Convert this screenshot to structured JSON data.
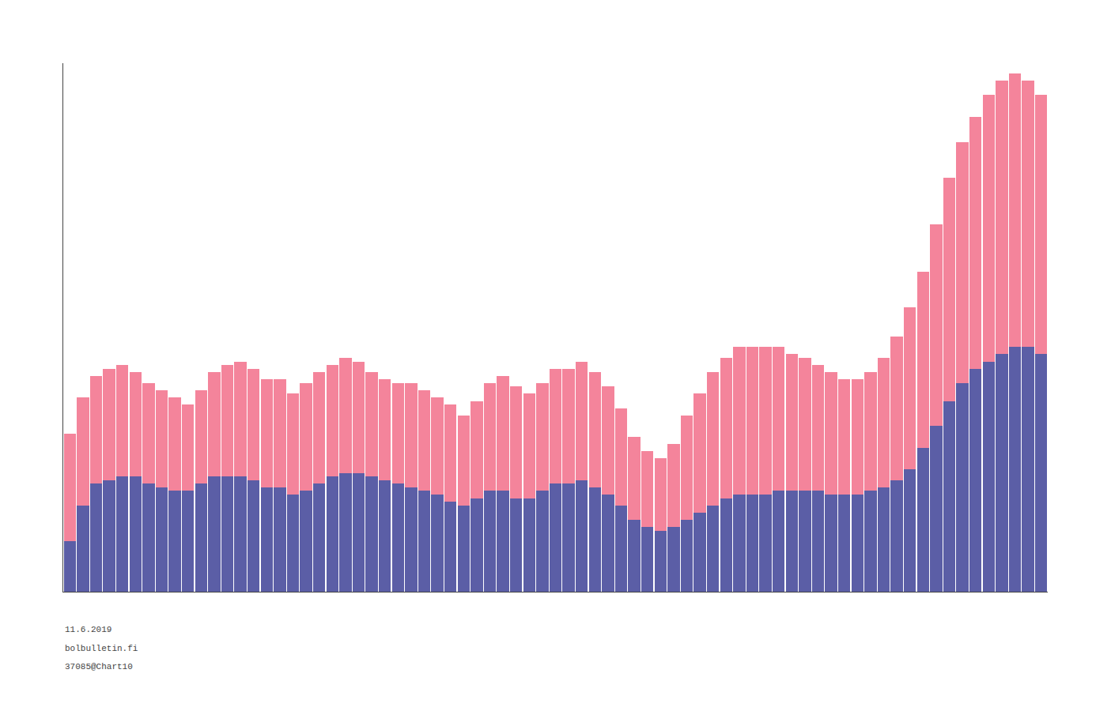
{
  "chart_data": {
    "type": "bar",
    "stacked": true,
    "grid": false,
    "tick_labels": false,
    "categories": [
      null,
      null,
      null,
      null,
      null,
      null,
      null,
      null,
      null,
      null,
      null,
      null,
      null,
      null,
      null,
      null,
      null,
      null,
      null,
      null,
      null,
      null,
      null,
      null,
      null,
      null,
      null,
      null,
      null,
      null,
      null,
      null,
      null,
      null,
      null,
      null,
      null,
      null,
      null,
      null,
      null,
      null,
      null,
      null,
      null,
      null,
      null,
      null,
      null,
      null,
      null,
      null,
      null,
      null,
      null,
      null,
      null,
      null,
      null,
      null,
      null,
      null,
      null,
      null,
      null,
      null,
      null,
      null,
      null,
      null,
      null,
      null,
      null,
      null,
      null
    ],
    "series": [
      {
        "color": "#5b5ea6",
        "values": [
          700,
          1200,
          1500,
          1550,
          1600,
          1600,
          1500,
          1450,
          1400,
          1400,
          1500,
          1600,
          1600,
          1600,
          1550,
          1450,
          1450,
          1350,
          1400,
          1500,
          1600,
          1650,
          1650,
          1600,
          1550,
          1500,
          1450,
          1400,
          1350,
          1250,
          1200,
          1300,
          1400,
          1400,
          1300,
          1300,
          1400,
          1500,
          1500,
          1550,
          1450,
          1350,
          1200,
          1000,
          900,
          850,
          900,
          1000,
          1100,
          1200,
          1300,
          1350,
          1350,
          1350,
          1400,
          1400,
          1400,
          1400,
          1350,
          1350,
          1350,
          1400,
          1450,
          1550,
          1700,
          2000,
          2300,
          2650,
          2900,
          3100,
          3200,
          3300,
          3400,
          3400,
          3300
        ]
      },
      {
        "color": "#f4849b",
        "values": [
          1500,
          1500,
          1500,
          1550,
          1550,
          1450,
          1400,
          1350,
          1300,
          1200,
          1300,
          1450,
          1550,
          1600,
          1550,
          1500,
          1500,
          1400,
          1500,
          1550,
          1550,
          1600,
          1550,
          1450,
          1400,
          1400,
          1450,
          1400,
          1350,
          1350,
          1250,
          1350,
          1500,
          1600,
          1550,
          1450,
          1500,
          1600,
          1600,
          1650,
          1600,
          1500,
          1350,
          1150,
          1050,
          1000,
          1150,
          1450,
          1650,
          1850,
          1950,
          2050,
          2050,
          2050,
          2000,
          1900,
          1850,
          1750,
          1700,
          1600,
          1600,
          1650,
          1800,
          2000,
          2250,
          2450,
          2800,
          3100,
          3350,
          3500,
          3700,
          3800,
          3800,
          3700,
          3600
        ]
      }
    ],
    "ylim": [
      0,
      7344
    ],
    "annotations": [
      "11.6.2019",
      "bolbulletin.fi",
      "37085@Chart10"
    ]
  }
}
